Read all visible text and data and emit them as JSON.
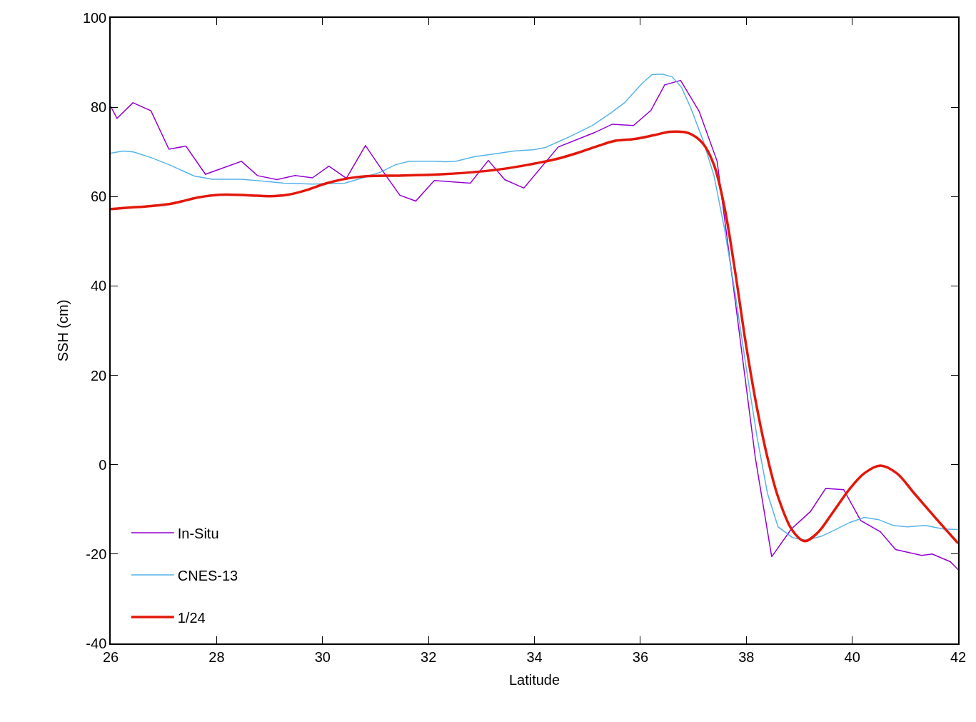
{
  "chart_data": {
    "type": "line",
    "xlabel": "Latitude",
    "ylabel": "SSH (cm)",
    "xlim": [
      26,
      42
    ],
    "ylim": [
      -40,
      100
    ],
    "xticks": [
      26,
      28,
      30,
      32,
      34,
      36,
      38,
      40,
      42
    ],
    "yticks": [
      -40,
      -20,
      0,
      20,
      40,
      60,
      80,
      100
    ],
    "legend": "bottom left",
    "marker": "none",
    "line_style": "solid",
    "series": [
      {
        "name": "In-Situ",
        "color": "#9400d3",
        "x": [
          26.0,
          26.12,
          26.42,
          26.76,
          27.1,
          27.42,
          27.79,
          28.47,
          28.77,
          29.14,
          29.48,
          29.81,
          30.12,
          30.45,
          30.81,
          31.15,
          31.46,
          31.76,
          32.11,
          32.79,
          33.13,
          33.44,
          33.8,
          34.45,
          35.13,
          35.47,
          35.87,
          36.2,
          36.46,
          36.76,
          37.11,
          37.45,
          37.79,
          38.17,
          38.48,
          38.85,
          39.21,
          39.5,
          39.84,
          40.16,
          40.53,
          40.82,
          41.31,
          41.51,
          41.85,
          42.0
        ],
        "values": [
          80.2,
          77.5,
          81.0,
          79.2,
          70.6,
          71.3,
          65.0,
          67.9,
          64.7,
          63.8,
          64.7,
          64.2,
          66.8,
          64.1,
          71.4,
          65.5,
          60.3,
          59.0,
          63.6,
          63.0,
          68.1,
          63.8,
          61.9,
          71.1,
          74.3,
          76.2,
          75.9,
          79.3,
          85.0,
          86.0,
          79.1,
          67.9,
          36.8,
          1.6,
          -20.6,
          -14.4,
          -10.5,
          -5.3,
          -5.6,
          -12.5,
          -15.0,
          -19.0,
          -20.3,
          -20.0,
          -21.7,
          -23.5
        ]
      },
      {
        "name": "CNES-13",
        "color": "#56b4e9",
        "x": [
          26.0,
          26.23,
          26.43,
          26.77,
          27.11,
          27.58,
          27.92,
          28.47,
          28.93,
          29.27,
          29.81,
          30.42,
          30.76,
          31.1,
          31.37,
          31.64,
          32.11,
          32.32,
          32.52,
          32.86,
          33.34,
          33.61,
          34.0,
          34.21,
          34.68,
          35.09,
          35.43,
          35.7,
          36.03,
          36.22,
          36.41,
          36.6,
          36.78,
          36.95,
          37.18,
          37.39,
          37.59,
          37.79,
          37.99,
          38.2,
          38.4,
          38.6,
          38.87,
          39.14,
          39.42,
          39.69,
          39.96,
          40.23,
          40.5,
          40.77,
          41.04,
          41.38,
          41.72,
          42.0
        ],
        "values": [
          69.7,
          70.2,
          70.0,
          68.7,
          67.1,
          64.6,
          63.9,
          63.9,
          63.4,
          63.0,
          62.8,
          63.0,
          64.2,
          65.5,
          67.1,
          67.9,
          67.9,
          67.8,
          67.9,
          68.9,
          69.7,
          70.2,
          70.5,
          71.0,
          73.5,
          75.9,
          78.6,
          81.0,
          85.3,
          87.3,
          87.4,
          86.8,
          84.4,
          79.9,
          72.7,
          64.7,
          52.7,
          38.4,
          22.4,
          6.4,
          -6.4,
          -13.9,
          -16.3,
          -16.9,
          -16.0,
          -14.5,
          -12.9,
          -11.8,
          -12.3,
          -13.6,
          -13.9,
          -13.6,
          -14.4,
          -14.5
        ]
      },
      {
        "name": "1/24",
        "color": "#e3170a",
        "x": [
          26.0,
          26.3,
          26.77,
          27.18,
          27.65,
          28.06,
          28.6,
          29.0,
          29.34,
          29.68,
          30.08,
          30.49,
          30.89,
          31.44,
          32.25,
          33.06,
          33.47,
          33.87,
          34.41,
          34.82,
          35.22,
          35.49,
          35.9,
          36.24,
          36.57,
          36.91,
          37.18,
          37.39,
          37.59,
          37.79,
          37.99,
          38.2,
          38.4,
          38.6,
          38.87,
          39.1,
          39.35,
          39.62,
          39.96,
          40.23,
          40.53,
          40.84,
          41.17,
          41.58,
          42.0
        ],
        "values": [
          57.2,
          57.5,
          57.9,
          58.5,
          59.8,
          60.4,
          60.3,
          60.1,
          60.4,
          61.4,
          63.0,
          64.1,
          64.6,
          64.7,
          65.0,
          65.7,
          66.3,
          67.1,
          68.4,
          69.8,
          71.4,
          72.4,
          72.9,
          73.7,
          74.5,
          74.2,
          71.9,
          67.1,
          57.5,
          43.2,
          27.2,
          12.8,
          1.6,
          -7.2,
          -14.7,
          -17.1,
          -15.2,
          -10.9,
          -5.3,
          -1.9,
          -0.2,
          -1.9,
          -6.4,
          -12.0,
          -17.6
        ]
      }
    ]
  }
}
